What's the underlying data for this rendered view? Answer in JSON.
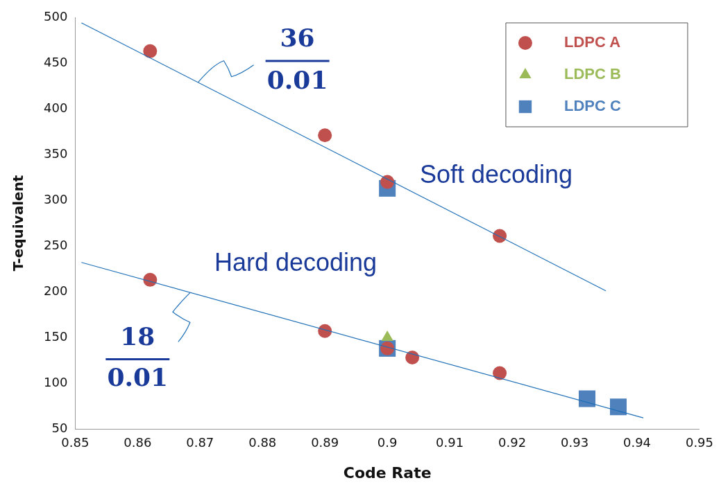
{
  "chart_data": {
    "type": "scatter",
    "xlabel": "Code Rate",
    "ylabel": "T-equivalent",
    "xlim": [
      0.85,
      0.95
    ],
    "xticks": [
      0.85,
      0.86,
      0.87,
      0.88,
      0.89,
      0.9,
      0.91,
      0.92,
      0.93,
      0.94,
      0.95
    ],
    "ylim": [
      50,
      500
    ],
    "yticks": [
      50,
      100,
      150,
      200,
      250,
      300,
      350,
      400,
      450,
      500
    ],
    "grid": false,
    "legend": "top right",
    "series": [
      {
        "name": "LDPC A",
        "marker": "circle",
        "color": "#c0504d",
        "x": [
          0.862,
          0.89,
          0.9,
          0.918,
          0.862,
          0.89,
          0.9,
          0.904,
          0.918
        ],
        "values": [
          463,
          371,
          320,
          261,
          213,
          157,
          138,
          128,
          111
        ]
      },
      {
        "name": "LDPC B",
        "marker": "triangle",
        "color": "#9bbb59",
        "x": [
          0.9
        ],
        "values": [
          150
        ]
      },
      {
        "name": "LDPC C",
        "marker": "square",
        "color": "#4f81bd",
        "x": [
          0.9,
          0.9,
          0.932,
          0.937
        ],
        "values": [
          313,
          138,
          83,
          74
        ]
      },
      {
        "type": "line",
        "marker": "none",
        "color": "#1f70b8",
        "x": [
          0.851,
          0.935
        ],
        "values": [
          494,
          201
        ]
      },
      {
        "type": "line",
        "marker": "none",
        "color": "#1f70b8",
        "x": [
          0.851,
          0.941
        ],
        "values": [
          232,
          62
        ]
      }
    ],
    "annotations": [
      {
        "text": "36",
        "x": 0.8697,
        "y": 429
      },
      "0.01",
      {
        "text": "18",
        "x": 0.8684,
        "y": 199
      },
      "0.01",
      "Soft decoding",
      "Hard decoding"
    ]
  }
}
